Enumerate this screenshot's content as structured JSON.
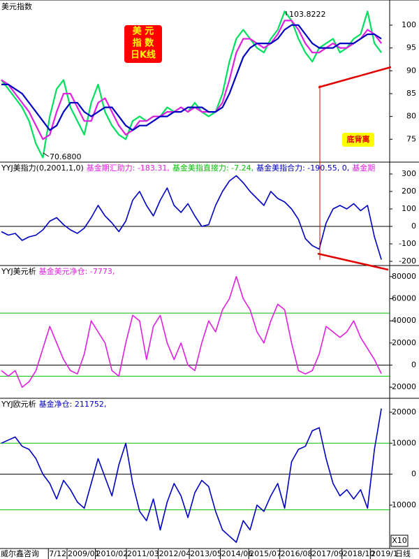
{
  "x_axis": {
    "x": [
      0,
      1,
      2,
      3,
      4,
      5,
      6,
      7,
      8,
      9,
      10,
      11,
      12,
      13,
      14,
      15,
      16,
      17,
      18,
      19,
      20,
      21,
      22,
      23,
      24,
      25,
      26,
      27,
      28,
      29,
      30,
      31,
      32,
      33,
      34,
      35,
      36,
      37,
      38,
      39,
      40,
      41,
      42,
      43,
      44,
      45,
      46,
      47,
      48,
      49,
      50,
      51,
      52,
      53,
      54,
      55
    ],
    "xlim": [
      0,
      56
    ],
    "xticks": [
      {
        "value": 6.8,
        "label": "7/12"
      },
      {
        "value": 9.5,
        "label": "2009/01"
      },
      {
        "value": 13.6,
        "label": "2010/02"
      },
      {
        "value": 18.1,
        "label": "2011/03"
      },
      {
        "value": 22.7,
        "label": "2012/04"
      },
      {
        "value": 27.2,
        "label": "2013/05"
      },
      {
        "value": 31.7,
        "label": "2014/06"
      },
      {
        "value": 35.8,
        "label": "2015/07"
      },
      {
        "value": 40.3,
        "label": "2016/08"
      },
      {
        "value": 44.8,
        "label": "2017/09"
      },
      {
        "value": 49.3,
        "label": "2018/10"
      },
      {
        "value": 53.4,
        "label": "2019/1"
      }
    ],
    "source": "威尔鑫咨询",
    "period": "日线",
    "scale": "X10"
  },
  "chart_data": [
    {
      "type": "line",
      "title": "美元指数",
      "box_label": [
        "美  元",
        "指  数",
        "日K线"
      ],
      "high_label": "103.8222",
      "low_label": "70.6800",
      "divergence_label": "底背离",
      "ylim": [
        70,
        105.5
      ],
      "yticks": [
        75,
        80,
        85,
        90,
        95,
        100
      ],
      "series": [
        {
          "color": "#00e060",
          "values": [
            88,
            86,
            84,
            82,
            79,
            74,
            71,
            80,
            86,
            88,
            82,
            79,
            76,
            83,
            87,
            81,
            78,
            76,
            75,
            79,
            80,
            79,
            80,
            80,
            82,
            81,
            82,
            81,
            83,
            81,
            80,
            81,
            85,
            92,
            97,
            99,
            97,
            95,
            94,
            97,
            99,
            103,
            101,
            97,
            94,
            92,
            95,
            96,
            97,
            94,
            95,
            97,
            98,
            103,
            96,
            94
          ]
        },
        {
          "color": "#e020e0",
          "values": [
            88,
            87,
            85,
            83,
            81,
            78,
            75,
            76,
            81,
            85,
            85,
            82,
            79,
            79,
            83,
            84,
            81,
            78,
            76,
            77,
            79,
            79,
            80,
            80,
            81,
            81,
            82,
            81,
            82,
            81,
            81,
            81,
            83,
            88,
            94,
            97,
            97,
            96,
            95,
            96,
            98,
            101,
            101,
            99,
            96,
            94,
            94,
            95,
            96,
            95,
            95,
            96,
            97,
            99,
            98,
            96
          ]
        },
        {
          "color": "#0000c0",
          "values": [
            87,
            87,
            86,
            85,
            83,
            81,
            79,
            77,
            78,
            81,
            83,
            83,
            81,
            80,
            81,
            82,
            82,
            80,
            78,
            77,
            78,
            78,
            79,
            80,
            80,
            81,
            81,
            82,
            82,
            82,
            81,
            81,
            82,
            85,
            89,
            93,
            95,
            96,
            96,
            96,
            97,
            99,
            100,
            100,
            98,
            96,
            95,
            95,
            95,
            96,
            96,
            96,
            97,
            98,
            98,
            97
          ]
        }
      ]
    },
    {
      "type": "line",
      "header": [
        {
          "text": "YYJ美指力(0,2001,1,0)",
          "color": "#000000"
        },
        {
          "text": "基金期汇助力: -183.31,",
          "color": "#e020e0"
        },
        {
          "text": "基金美指直接力: -7.24,",
          "color": "#00c000"
        },
        {
          "text": "基金美指合力: -190.55, 0,",
          "color": "#0000c0"
        },
        {
          "text": "基金期",
          "color": "#e020e0"
        }
      ],
      "ylim": [
        -224,
        368
      ],
      "yticks": [
        -200,
        -100,
        0,
        100,
        200,
        300
      ],
      "reference_lines": [
        {
          "value": 0,
          "color": "#000000"
        }
      ],
      "series": [
        {
          "color": "#0000c0",
          "values": [
            -30,
            -50,
            -40,
            -80,
            -60,
            -50,
            -20,
            30,
            50,
            10,
            -20,
            -40,
            -10,
            50,
            120,
            60,
            20,
            -30,
            30,
            150,
            200,
            120,
            60,
            150,
            220,
            120,
            80,
            130,
            60,
            0,
            10,
            120,
            200,
            260,
            290,
            250,
            200,
            160,
            120,
            200,
            160,
            140,
            100,
            40,
            -70,
            -110,
            -130,
            20,
            100,
            120,
            100,
            130,
            90,
            120,
            -60,
            -190
          ]
        }
      ]
    },
    {
      "type": "line",
      "header": [
        {
          "text": "YYJ美元析",
          "color": "#000000"
        },
        {
          "text": "基金美元净仓: -7773,",
          "color": "#e020e0"
        }
      ],
      "ylim": [
        -30000,
        90000
      ],
      "yticks": [
        -20000,
        0,
        20000,
        40000,
        60000,
        80000
      ],
      "reference_lines": [
        {
          "value": 0,
          "color": "#000000"
        },
        {
          "value": 47000,
          "color": "#00c000"
        },
        {
          "value": -10000,
          "color": "#00c000"
        }
      ],
      "series": [
        {
          "color": "#e020e0",
          "values": [
            -5000,
            -10000,
            -5000,
            -20000,
            -15000,
            -5000,
            15000,
            35000,
            20000,
            5000,
            -5000,
            -8000,
            10000,
            40000,
            30000,
            20000,
            -5000,
            -10000,
            20000,
            45000,
            40000,
            5000,
            35000,
            45000,
            20000,
            5000,
            20000,
            0,
            -5000,
            20000,
            40000,
            30000,
            50000,
            60000,
            80000,
            60000,
            50000,
            30000,
            20000,
            40000,
            55000,
            50000,
            20000,
            -5000,
            -8000,
            -5000,
            10000,
            35000,
            30000,
            25000,
            30000,
            40000,
            25000,
            15000,
            5000,
            -7773
          ]
        }
      ]
    },
    {
      "type": "line",
      "header": [
        {
          "text": "YYJ欧元析",
          "color": "#000000"
        },
        {
          "text": "基金净仓: 211752,",
          "color": "#0000c0"
        }
      ],
      "ylim": [
        -24000,
        24500
      ],
      "yticks": [
        -10000,
        0,
        10000,
        20000
      ],
      "reference_lines": [
        {
          "value": 0,
          "color": "#000000"
        },
        {
          "value": 10000,
          "color": "#00c000"
        },
        {
          "value": -11500,
          "color": "#00c000"
        }
      ],
      "series": [
        {
          "color": "#0000c0",
          "values": [
            10000,
            11000,
            12000,
            9000,
            8000,
            5000,
            0,
            -3000,
            -8000,
            -2000,
            -5000,
            -9000,
            -11000,
            -3000,
            5000,
            -1000,
            -7000,
            3000,
            10000,
            -3000,
            -12000,
            -15000,
            -8000,
            -18000,
            -9000,
            -3000,
            -7000,
            -14000,
            -6000,
            -2000,
            -4000,
            -12000,
            -18000,
            -20000,
            -22000,
            -15000,
            -18000,
            -10000,
            -12000,
            -7000,
            -3000,
            -11000,
            4000,
            8000,
            9000,
            14000,
            15000,
            5000,
            -3000,
            -7000,
            -5000,
            -8000,
            -5000,
            -11000,
            8000,
            21175
          ]
        }
      ]
    }
  ]
}
